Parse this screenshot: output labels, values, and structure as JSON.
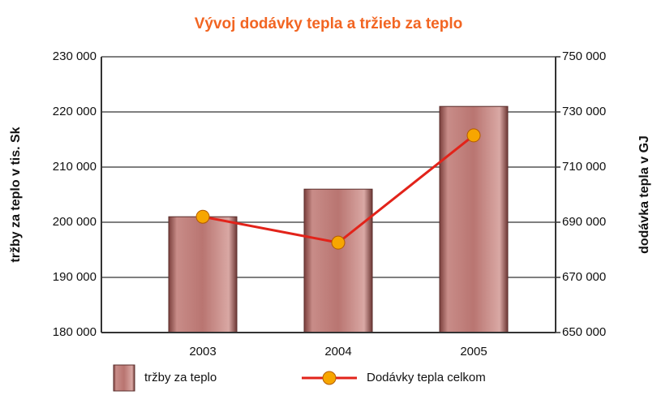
{
  "chart_data": {
    "type": "bar_line",
    "title": "Vývoj dodávky tepla a tržieb za teplo",
    "ylabel": "tržby za teplo v tis. Sk",
    "y2label": "dodávka tepla v GJ",
    "categories": [
      "2003",
      "2004",
      "2005"
    ],
    "series": [
      {
        "name": "tržby za teplo",
        "type": "bar",
        "color": "#b97571",
        "values": [
          201000,
          206000,
          221000
        ]
      },
      {
        "name": "Dodávky tepla celkom",
        "type": "line",
        "axis": "y2",
        "color": "#e2231a",
        "marker_color": "#f7a600",
        "values": [
          692000,
          682600,
          721500
        ]
      }
    ],
    "ylim": [
      180000,
      230000
    ],
    "yticks": [
      {
        "value": 180000,
        "label": "180 000"
      },
      {
        "value": 190000,
        "label": "190 000"
      },
      {
        "value": 200000,
        "label": "200 000"
      },
      {
        "value": 210000,
        "label": "210 000"
      },
      {
        "value": 220000,
        "label": "220 000"
      },
      {
        "value": 230000,
        "label": "230 000"
      }
    ],
    "y2lim": [
      650000,
      750000
    ],
    "y2ticks": [
      {
        "value": 650000,
        "label": "650 000"
      },
      {
        "value": 670000,
        "label": "670 000"
      },
      {
        "value": 690000,
        "label": "690 000"
      },
      {
        "value": 710000,
        "label": "710 000"
      },
      {
        "value": 730000,
        "label": "730 000"
      },
      {
        "value": 750000,
        "label": "750 000"
      }
    ],
    "grid": true,
    "legend": "bottom"
  }
}
